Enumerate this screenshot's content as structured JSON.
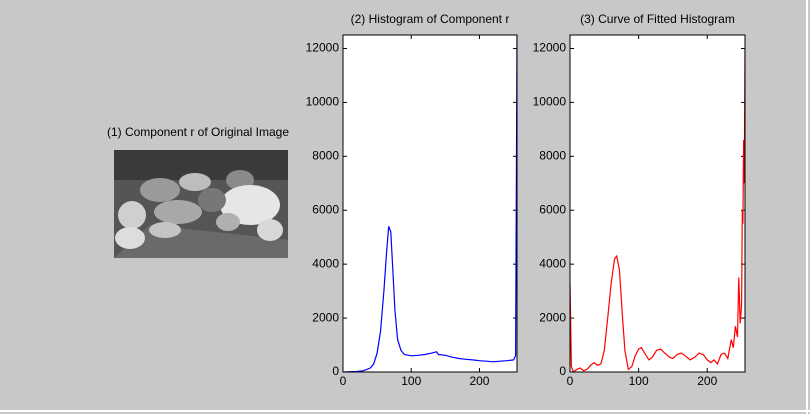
{
  "chart_data": [
    {
      "type": "image",
      "title": "(1)  Component r of Original Image"
    },
    {
      "type": "line",
      "title": "(2) Histogram of Component r",
      "color": "#0000ff",
      "x": [
        0,
        10,
        20,
        30,
        40,
        45,
        50,
        55,
        60,
        64,
        67,
        70,
        73,
        76,
        80,
        85,
        90,
        100,
        110,
        120,
        130,
        137,
        140,
        150,
        160,
        170,
        180,
        190,
        200,
        210,
        220,
        230,
        240,
        250,
        253,
        254,
        255
      ],
      "values": [
        0,
        10,
        20,
        50,
        150,
        300,
        700,
        1500,
        3000,
        4500,
        5400,
        5200,
        3800,
        2300,
        1200,
        800,
        650,
        600,
        620,
        650,
        700,
        750,
        650,
        620,
        550,
        500,
        470,
        450,
        420,
        400,
        380,
        400,
        420,
        450,
        600,
        6500,
        12500
      ],
      "xlim": [
        0,
        255
      ],
      "xticks": [
        0,
        100,
        200
      ],
      "ylim": [
        0,
        12500
      ],
      "yticks": [
        0,
        2000,
        4000,
        6000,
        8000,
        10000,
        12000
      ]
    },
    {
      "type": "line",
      "title": "(3) Curve of Fitted Histogram",
      "color": "#ff0000",
      "x": [
        0,
        2,
        5,
        10,
        15,
        20,
        25,
        30,
        35,
        40,
        45,
        50,
        55,
        60,
        65,
        68,
        72,
        76,
        80,
        85,
        90,
        95,
        100,
        104,
        110,
        115,
        120,
        126,
        132,
        138,
        145,
        150,
        156,
        162,
        168,
        175,
        182,
        188,
        194,
        200,
        205,
        210,
        215,
        220,
        225,
        230,
        235,
        238,
        241,
        244,
        246,
        248,
        250,
        251,
        252,
        253,
        254,
        255
      ],
      "values": [
        3300,
        200,
        0,
        100,
        150,
        50,
        100,
        250,
        350,
        250,
        300,
        800,
        2000,
        3300,
        4200,
        4300,
        3800,
        2200,
        800,
        100,
        200,
        600,
        850,
        900,
        650,
        450,
        550,
        800,
        850,
        700,
        550,
        500,
        650,
        700,
        600,
        450,
        550,
        700,
        650,
        450,
        350,
        450,
        300,
        650,
        700,
        500,
        1200,
        900,
        1700,
        1300,
        3500,
        1800,
        2500,
        6000,
        5500,
        8600,
        7000,
        12000
      ],
      "xlim": [
        0,
        255
      ],
      "xticks": [
        0,
        100,
        200
      ],
      "ylim": [
        0,
        12500
      ],
      "yticks": [
        0,
        2000,
        4000,
        6000,
        8000,
        10000,
        12000
      ]
    }
  ]
}
